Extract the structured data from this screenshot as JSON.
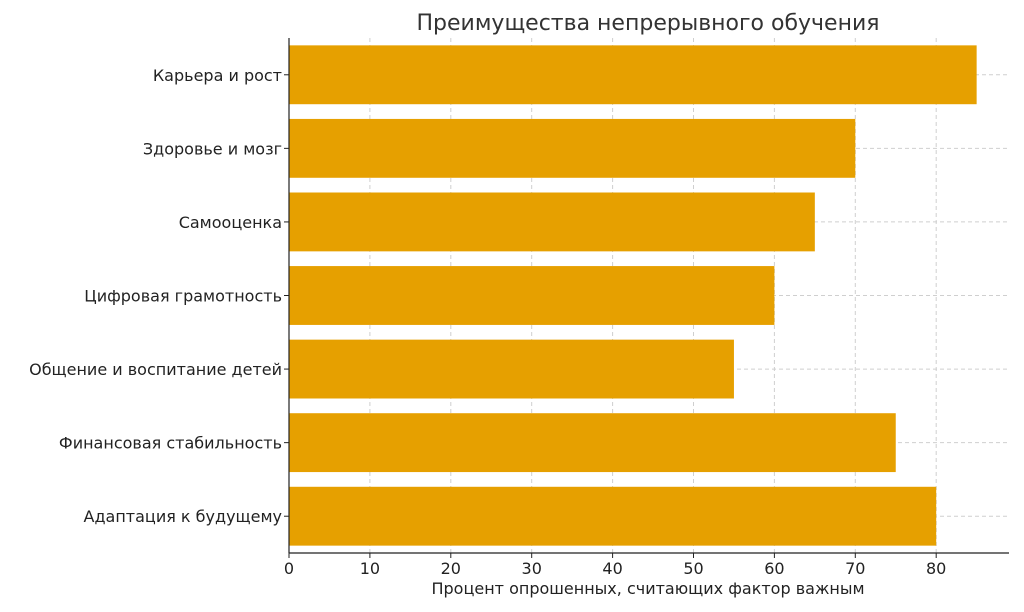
{
  "chart_data": {
    "type": "bar",
    "orientation": "horizontal",
    "title": "Преимущества непрерывного обучения",
    "xlabel": "Процент опрошенных, считающих фактор важным",
    "ylabel": "",
    "categories": [
      "Карьера и рост",
      "Здоровье и мозг",
      "Самооценка",
      "Цифровая грамотность",
      "Общение и воспитание детей",
      "Финансовая стабильность",
      "Адаптация к будущему"
    ],
    "values": [
      85,
      70,
      65,
      60,
      55,
      75,
      80
    ],
    "xlim": [
      0,
      89
    ],
    "xticks": [
      0,
      10,
      20,
      30,
      40,
      50,
      60,
      70,
      80
    ],
    "grid": true,
    "bar_color": "#E6A000"
  }
}
